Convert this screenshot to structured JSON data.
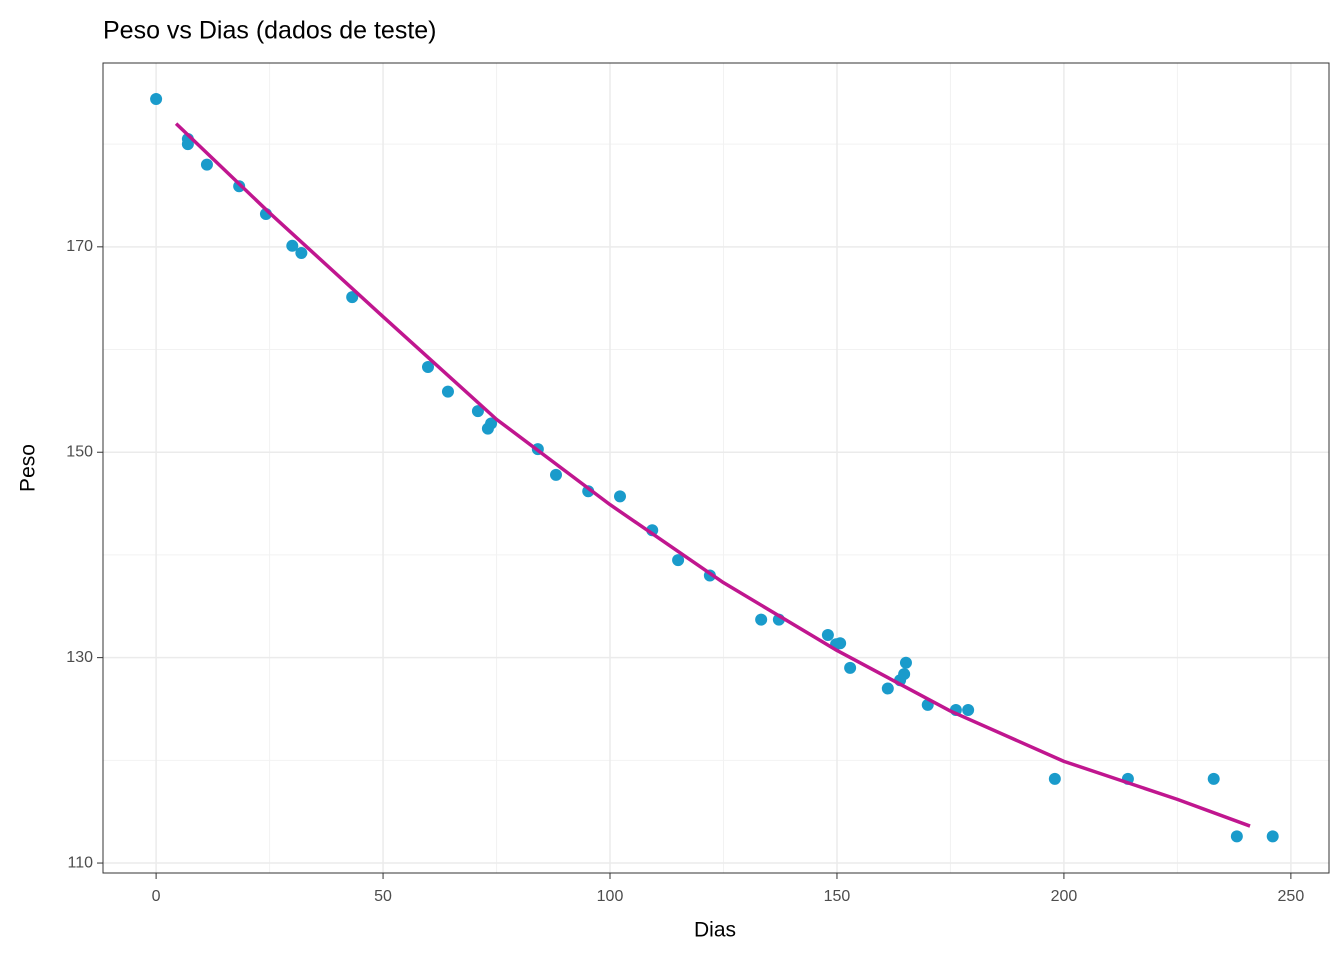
{
  "chart_data": {
    "type": "scatter",
    "title": "Peso vs Dias (dados de teste)",
    "x_label": "Dias",
    "y_label": "Peso",
    "xlim": [
      -11.7,
      258.4
    ],
    "ylim": [
      109.03,
      187.9
    ],
    "xticks": [
      0,
      50,
      100,
      150,
      200,
      250
    ],
    "yticks": [
      110,
      130,
      150,
      170
    ],
    "xminor": [
      25,
      75,
      125,
      175,
      225
    ],
    "yminor": [
      120,
      140,
      160,
      180
    ],
    "grid": true,
    "series": [
      {
        "type": "scatter",
        "color": "#1a9bcb",
        "x": [
          0,
          7,
          7,
          11.2,
          18.3,
          24.2,
          30,
          32,
          43.2,
          59.9,
          64.3,
          70.9,
          73.1,
          73.8,
          84.1,
          88.1,
          95.2,
          102.2,
          109.3,
          115,
          122,
          133.3,
          137.2,
          148,
          149.8,
          150.7,
          152.9,
          161.2,
          163.9,
          164.8,
          165.2,
          170,
          176.2,
          178.9,
          198,
          214.1,
          233,
          238.1,
          246
        ],
        "values": [
          184.4,
          180.5,
          180.0,
          178.0,
          175.9,
          173.2,
          170.1,
          169.4,
          165.1,
          158.3,
          155.9,
          154.0,
          152.3,
          152.8,
          150.3,
          147.8,
          146.2,
          145.7,
          142.4,
          139.5,
          138.0,
          133.7,
          133.7,
          132.2,
          131.3,
          131.4,
          129.0,
          127.0,
          127.8,
          128.4,
          129.5,
          125.4,
          124.9,
          124.9,
          118.2,
          118.2,
          118.2,
          112.6,
          112.6
        ]
      },
      {
        "type": "line",
        "color": "#c0168f",
        "x": [
          4.4,
          25,
          50,
          75,
          100,
          125,
          150,
          175,
          200,
          225,
          241
        ],
        "values": [
          182.0,
          173.3,
          163.2,
          153.2,
          144.9,
          137.3,
          130.7,
          124.8,
          119.9,
          116.2,
          113.6
        ]
      }
    ]
  }
}
